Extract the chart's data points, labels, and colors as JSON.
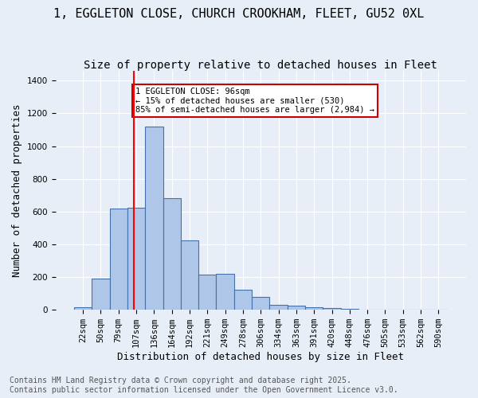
{
  "title": "1, EGGLETON CLOSE, CHURCH CROOKHAM, FLEET, GU52 0XL",
  "subtitle": "Size of property relative to detached houses in Fleet",
  "xlabel": "Distribution of detached houses by size in Fleet",
  "ylabel": "Number of detached properties",
  "bar_labels": [
    "22sqm",
    "50sqm",
    "79sqm",
    "107sqm",
    "136sqm",
    "164sqm",
    "192sqm",
    "221sqm",
    "249sqm",
    "278sqm",
    "306sqm",
    "334sqm",
    "363sqm",
    "391sqm",
    "420sqm",
    "448sqm",
    "476sqm",
    "505sqm",
    "533sqm",
    "562sqm",
    "590sqm"
  ],
  "bar_values": [
    15,
    190,
    620,
    625,
    1120,
    680,
    425,
    215,
    218,
    125,
    80,
    30,
    25,
    15,
    10,
    5,
    2,
    2,
    1,
    1,
    0
  ],
  "bar_color": "#aec6e8",
  "bar_edge_color": "#4472a8",
  "background_color": "#e8eef8",
  "grid_color": "#ffffff",
  "annotation_text": "1 EGGLETON CLOSE: 96sqm\n← 15% of detached houses are smaller (530)\n85% of semi-detached houses are larger (2,984) →",
  "annotation_box_color": "#ffffff",
  "annotation_box_edge_color": "#cc0000",
  "vline_x_index": 2.85,
  "ylim": [
    0,
    1460
  ],
  "yticks": [
    0,
    200,
    400,
    600,
    800,
    1000,
    1200,
    1400
  ],
  "footer_text": "Contains HM Land Registry data © Crown copyright and database right 2025.\nContains public sector information licensed under the Open Government Licence v3.0.",
  "title_fontsize": 11,
  "subtitle_fontsize": 10,
  "axis_fontsize": 9,
  "tick_fontsize": 7.5,
  "footer_fontsize": 7
}
